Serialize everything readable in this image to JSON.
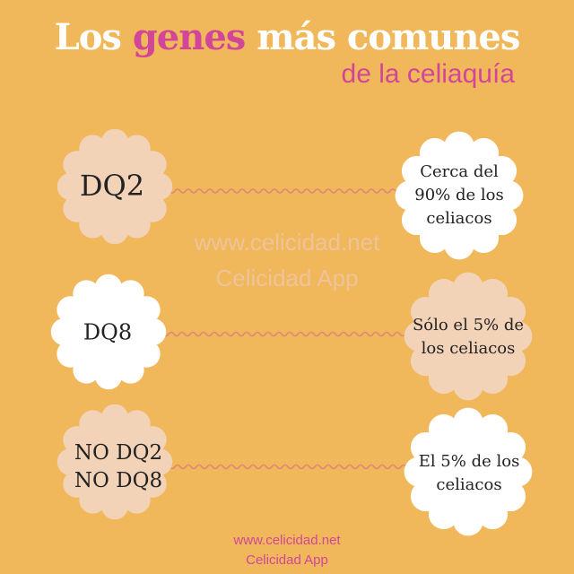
{
  "title": {
    "part1": "Los ",
    "highlight": "genes",
    "part2": " más comunes",
    "subtitle": "de la celiaquía"
  },
  "colors": {
    "background": "#f0b85a",
    "peach": "#f3d3b8",
    "white": "#ffffff",
    "accent": "#d2469a",
    "wave": "#e0857a"
  },
  "rows": [
    {
      "gene": "DQ2",
      "gene_fill": "peach",
      "stat": "Cerca del 90% de los celiacos",
      "stat_fill": "white"
    },
    {
      "gene": "DQ8",
      "gene_fill": "white",
      "stat": "Sólo el 5% de los celiacos",
      "stat_fill": "peach"
    },
    {
      "gene": "NO DQ2 NO DQ8",
      "gene_fill": "peach",
      "stat": "El 5% de los celiacos",
      "stat_fill": "white"
    }
  ],
  "watermark": {
    "line1": "www.celicidad.net",
    "line2": "Celicidad App"
  },
  "footer": {
    "line1": "www.celicidad.net",
    "line2": "Celicidad App"
  }
}
